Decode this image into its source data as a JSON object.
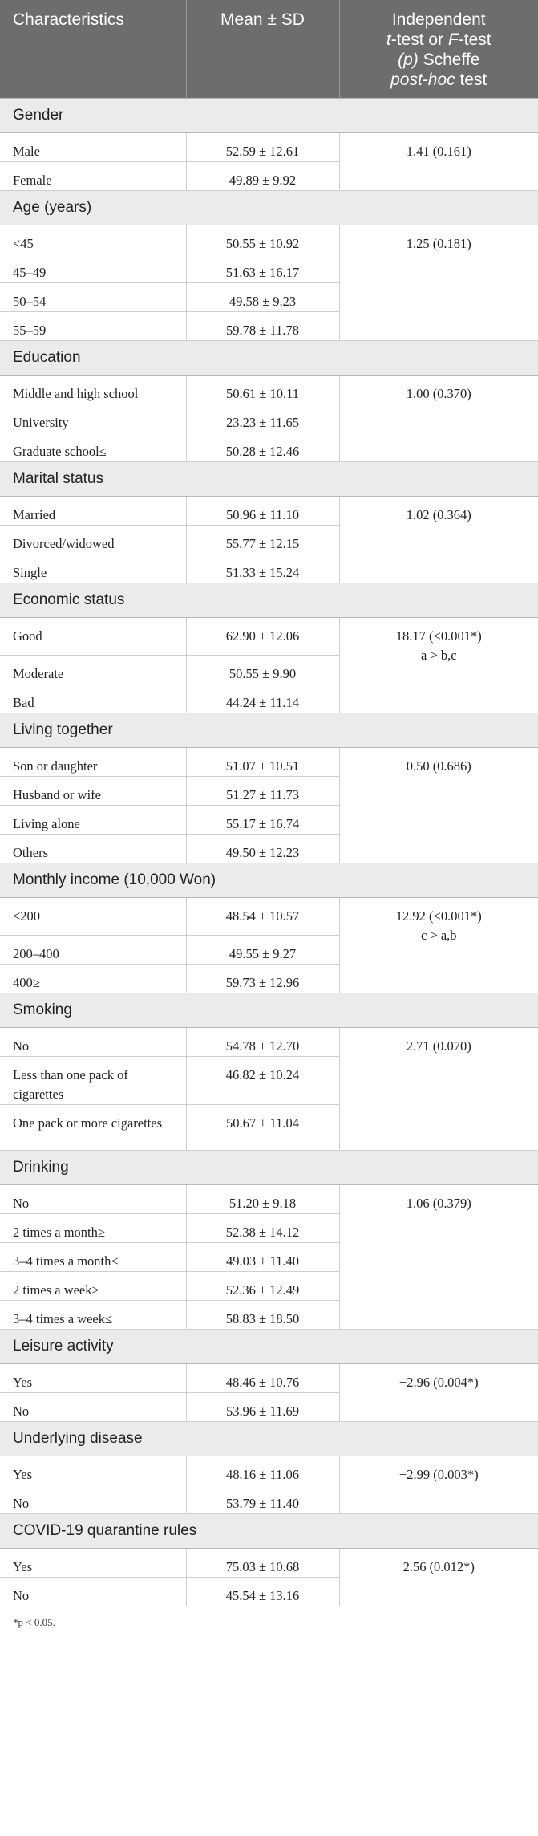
{
  "header": {
    "col1": "Characteristics",
    "col2": "Mean ± SD",
    "col3_line1": "Independent",
    "col3_line2_i1": "t",
    "col3_line2_t1": "-test or ",
    "col3_line2_i2": "F",
    "col3_line2_t2": "-test",
    "col3_line3_i": "(p)",
    "col3_line3_t": " Scheffe",
    "col3_line4_i": "post-hoc",
    "col3_line4_t": " test"
  },
  "sections": [
    {
      "title": "Gender",
      "test": "1.41 (0.161)",
      "test2": "",
      "rows": [
        {
          "label": "Male",
          "value": "52.59 ± 12.61"
        },
        {
          "label": "Female",
          "value": "49.89 ± 9.92"
        }
      ]
    },
    {
      "title": "Age (years)",
      "test": "1.25 (0.181)",
      "test2": "",
      "rows": [
        {
          "label": "<45",
          "value": "50.55 ± 10.92"
        },
        {
          "label": "45–49",
          "value": "51.63 ± 16.17"
        },
        {
          "label": "50–54",
          "value": "49.58 ± 9.23"
        },
        {
          "label": "55–59",
          "value": "59.78 ± 11.78"
        }
      ]
    },
    {
      "title": "Education",
      "test": "1.00 (0.370)",
      "test2": "",
      "rows": [
        {
          "label": "Middle and high school",
          "value": "50.61 ± 10.11"
        },
        {
          "label": "University",
          "value": "23.23 ± 11.65"
        },
        {
          "label": "Graduate school≤",
          "value": "50.28 ± 12.46"
        }
      ]
    },
    {
      "title": "Marital status",
      "test": "1.02 (0.364)",
      "test2": "",
      "rows": [
        {
          "label": "Married",
          "value": "50.96 ± 11.10"
        },
        {
          "label": "Divorced/widowed",
          "value": "55.77 ± 12.15"
        },
        {
          "label": "Single",
          "value": "51.33 ± 15.24"
        }
      ]
    },
    {
      "title": "Economic status",
      "test": "18.17 (<0.001*)",
      "test2": "a > b,c",
      "rows": [
        {
          "label": "Good",
          "value": "62.90 ± 12.06"
        },
        {
          "label": "Moderate",
          "value": "50.55 ± 9.90"
        },
        {
          "label": "Bad",
          "value": "44.24 ± 11.14"
        }
      ]
    },
    {
      "title": "Living together",
      "test": "0.50 (0.686)",
      "test2": "",
      "rows": [
        {
          "label": "Son or daughter",
          "value": "51.07 ± 10.51"
        },
        {
          "label": "Husband or wife",
          "value": "51.27 ± 11.73"
        },
        {
          "label": "Living alone",
          "value": "55.17 ± 16.74"
        },
        {
          "label": "Others",
          "value": "49.50 ± 12.23"
        }
      ]
    },
    {
      "title": "Monthly income (10,000 Won)",
      "test": "12.92 (<0.001*)",
      "test2": "c > a,b",
      "rows": [
        {
          "label": "<200",
          "value": "48.54 ± 10.57"
        },
        {
          "label": "200–400",
          "value": "49.55 ± 9.27"
        },
        {
          "label": "400≥",
          "value": "59.73 ± 12.96"
        }
      ]
    },
    {
      "title": "Smoking",
      "test": "2.71 (0.070)",
      "test2": "",
      "rows": [
        {
          "label": "No",
          "value": "54.78 ± 12.70"
        },
        {
          "label": "Less than one pack of cigarettes",
          "value": "46.82 ± 10.24"
        },
        {
          "label": "One pack or more cigarettes",
          "value": "50.67 ± 11.04"
        }
      ]
    },
    {
      "title": "Drinking",
      "test": "1.06 (0.379)",
      "test2": "",
      "rows": [
        {
          "label": "No",
          "value": "51.20 ± 9.18"
        },
        {
          "label": "2 times a month≥",
          "value": "52.38 ± 14.12"
        },
        {
          "label": "3–4 times a month≤",
          "value": "49.03 ± 11.40"
        },
        {
          "label": "2 times a week≥",
          "value": "52.36 ± 12.49"
        },
        {
          "label": "3–4 times a week≤",
          "value": "58.83 ± 18.50"
        }
      ]
    },
    {
      "title": "Leisure activity",
      "test": "−2.96 (0.004*)",
      "test2": "",
      "rows": [
        {
          "label": "Yes",
          "value": "48.46 ± 10.76"
        },
        {
          "label": "No",
          "value": "53.96 ± 11.69"
        }
      ]
    },
    {
      "title": "Underlying disease",
      "test": "−2.99 (0.003*)",
      "test2": "",
      "rows": [
        {
          "label": "Yes",
          "value": "48.16 ± 11.06"
        },
        {
          "label": "No",
          "value": "53.79 ± 11.40"
        }
      ]
    },
    {
      "title": "COVID-19 quarantine rules",
      "test": "2.56 (0.012*)",
      "test2": "",
      "rows": [
        {
          "label": "Yes",
          "value": "75.03 ± 10.68"
        },
        {
          "label": "No",
          "value": "45.54 ± 13.16"
        }
      ]
    }
  ],
  "footnote": "*p < 0.05."
}
